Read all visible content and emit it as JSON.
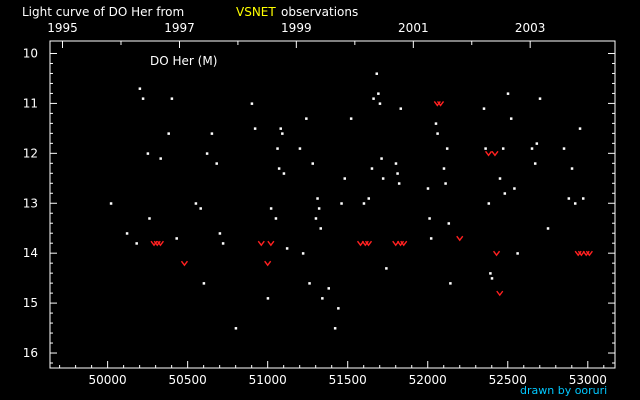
{
  "chart_data": {
    "type": "scatter",
    "title_prefix": "Light curve of DO Her from",
    "title_source": "VSNET",
    "title_suffix": "observations",
    "annotation": "DO Her (M)",
    "credit": "drawn by ooruri",
    "x_bottom_ticks": [
      50000,
      50500,
      51000,
      51500,
      52000,
      52500,
      53000
    ],
    "x_bottom_tick_labels": [
      "50000",
      "50500",
      "51000",
      "51500",
      "52000",
      "52500",
      "53000"
    ],
    "x_top_ticks": [
      1995,
      1997,
      1999,
      2001,
      2003
    ],
    "y_ticks": [
      10,
      11,
      12,
      13,
      14,
      15,
      16
    ],
    "y_range_reversed": [
      9.75,
      16.3
    ],
    "x_range": [
      49640,
      53170
    ],
    "year_jd": {
      "1995": 49718,
      "1997": 50449,
      "1999": 51179,
      "2001": 51910,
      "2003": 52640
    },
    "colors": {
      "background": "#000000",
      "axis": "#ffffff",
      "text": "#ffffff",
      "observation": "#ffffff",
      "fainter_than": "#ff2020",
      "source": "#ffff00",
      "credit": "#00c8ff"
    },
    "series": [
      {
        "kind": "observation",
        "x": [
          50020,
          50120,
          50180,
          50200,
          50220,
          50250,
          50260,
          50330,
          50380,
          50400,
          50430,
          50550,
          50580,
          50600,
          50620,
          50650,
          50680,
          50700,
          50720,
          50800,
          50900,
          50920,
          51000,
          51020,
          51050,
          51060,
          51070,
          51080,
          51090,
          51100,
          51120,
          51200,
          51220,
          51240,
          51260,
          51280,
          51300,
          51310,
          51320,
          51330,
          51340,
          51380,
          51420,
          51440,
          51460,
          51480,
          51520,
          51600,
          51630,
          51650,
          51660,
          51680,
          51690,
          51700,
          51710,
          51720,
          51740,
          51800,
          51810,
          51820,
          51830,
          52000,
          52010,
          52020,
          52050,
          52060,
          52100,
          52110,
          52120,
          52130,
          52140,
          52350,
          52360,
          52380,
          52390,
          52400,
          52450,
          52470,
          52480,
          52500,
          52520,
          52540,
          52560,
          52650,
          52670,
          52680,
          52700,
          52750,
          52850,
          52880,
          52900,
          52920,
          52950,
          52970
        ],
        "y": [
          13.0,
          13.6,
          13.8,
          10.7,
          10.9,
          12.0,
          13.3,
          12.1,
          11.6,
          10.9,
          13.7,
          13.0,
          13.1,
          14.6,
          12.0,
          11.6,
          12.2,
          13.6,
          13.8,
          15.5,
          11.0,
          11.5,
          14.9,
          13.1,
          13.3,
          11.9,
          12.3,
          11.5,
          11.6,
          12.4,
          13.9,
          11.9,
          14.0,
          11.3,
          14.6,
          12.2,
          13.3,
          12.9,
          13.1,
          13.5,
          14.9,
          14.7,
          15.5,
          15.1,
          13.0,
          12.5,
          11.3,
          13.0,
          12.9,
          12.3,
          10.9,
          10.4,
          10.8,
          11.0,
          12.1,
          12.5,
          14.3,
          12.2,
          12.4,
          12.6,
          11.1,
          12.7,
          13.3,
          13.7,
          11.4,
          11.6,
          12.3,
          12.6,
          11.9,
          13.4,
          14.6,
          11.1,
          11.9,
          13.0,
          14.4,
          14.5,
          12.5,
          11.9,
          12.8,
          10.8,
          11.3,
          12.7,
          14.0,
          11.9,
          12.2,
          11.8,
          10.9,
          13.5,
          11.9,
          12.9,
          12.3,
          13.0,
          11.5,
          12.9
        ]
      },
      {
        "kind": "fainter_than",
        "x": [
          50290,
          50310,
          50330,
          50480,
          50960,
          51000,
          51020,
          51580,
          51610,
          51630,
          51800,
          51830,
          51850,
          52060,
          52080,
          52200,
          52380,
          52420,
          52430,
          52450,
          52940,
          52960,
          52990,
          53010
        ],
        "y": [
          13.8,
          13.8,
          13.8,
          14.2,
          13.8,
          14.2,
          13.8,
          13.8,
          13.8,
          13.8,
          13.8,
          13.8,
          13.8,
          11.0,
          11.0,
          13.7,
          12.0,
          12.0,
          14.0,
          14.8,
          14.0,
          14.0,
          14.0,
          14.0
        ]
      }
    ]
  }
}
